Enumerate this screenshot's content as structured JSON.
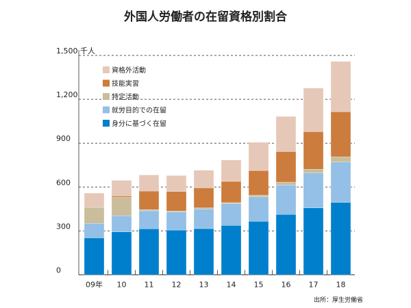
{
  "title": "外国人労働者の在留資格別割合",
  "source": "出所：厚生労働省",
  "chart_data": {
    "type": "bar",
    "stacked": true,
    "title": "外国人労働者の在留資格別割合",
    "ylabel": "千人",
    "ylim": [
      0,
      1500
    ],
    "yticks": [
      "0",
      "300",
      "600",
      "900",
      "1,200",
      "1,500"
    ],
    "grid": true,
    "legend_position": "top-left",
    "categories": [
      "09年",
      "10",
      "11",
      "12",
      "13",
      "14",
      "15",
      "16",
      "17",
      "18"
    ],
    "series": [
      {
        "name": "身分に基づく在留",
        "color": "#0080cc",
        "values": [
          253,
          294,
          315,
          306,
          316,
          338,
          366,
          413,
          458,
          495
        ]
      },
      {
        "name": "就労目的での在留",
        "color": "#94bfe6",
        "values": [
          99,
          110,
          123,
          124,
          134,
          148,
          167,
          201,
          238,
          276
        ]
      },
      {
        "name": "特定活動",
        "color": "#c9bd9c",
        "values": [
          109,
          126,
          8,
          6,
          8,
          8,
          12,
          20,
          26,
          36
        ]
      },
      {
        "name": "技能実習",
        "color": "#cc7c3c",
        "values": [
          0,
          9,
          127,
          134,
          137,
          145,
          168,
          209,
          257,
          308
        ]
      },
      {
        "name": "資格外活動",
        "color": "#e6c8b8",
        "values": [
          98,
          107,
          110,
          109,
          120,
          146,
          193,
          240,
          298,
          344
        ]
      }
    ]
  }
}
